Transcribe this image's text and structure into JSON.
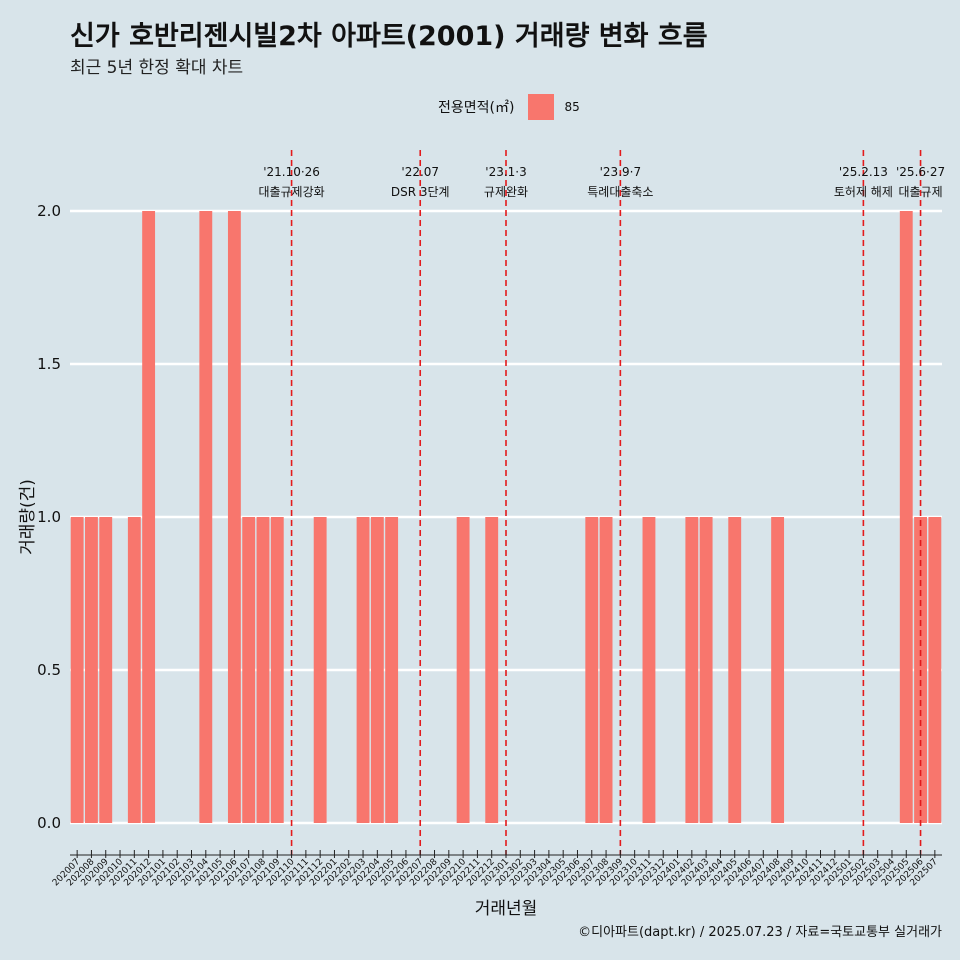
{
  "header": {
    "title": "신가 호반리젠시빌2차 아파트(2001) 거래량 변화 흐름",
    "subtitle": "최근 5년 한정 확대 차트"
  },
  "legend": {
    "title": "전용면적(㎡)",
    "label": "85",
    "color": "#f8766d"
  },
  "caption": "©디아파트(dapt.kr) / 2025.07.23 / 자료=국토교통부 실거래가",
  "chart_data": {
    "type": "bar",
    "xlabel": "거래년월",
    "ylabel": "거래량(건)",
    "ylim": [
      0,
      2
    ],
    "yticks": [
      "0.0",
      "0.5",
      "1.0",
      "1.5",
      "2.0"
    ],
    "categories": [
      "202007",
      "202008",
      "202009",
      "202010",
      "202011",
      "202012",
      "202101",
      "202102",
      "202103",
      "202104",
      "202105",
      "202106",
      "202107",
      "202108",
      "202109",
      "202110",
      "202111",
      "202112",
      "202201",
      "202202",
      "202203",
      "202204",
      "202205",
      "202206",
      "202207",
      "202208",
      "202209",
      "202210",
      "202211",
      "202212",
      "202301",
      "202302",
      "202303",
      "202304",
      "202305",
      "202306",
      "202307",
      "202308",
      "202309",
      "202310",
      "202311",
      "202312",
      "202401",
      "202402",
      "202403",
      "202404",
      "202405",
      "202406",
      "202407",
      "202408",
      "202409",
      "202410",
      "202411",
      "202412",
      "202501",
      "202502",
      "202503",
      "202504",
      "202505",
      "202506",
      "202507"
    ],
    "series": [
      {
        "name": "85",
        "values": [
          1,
          1,
          1,
          0,
          1,
          2,
          0,
          0,
          0,
          2,
          0,
          2,
          1,
          1,
          1,
          0,
          0,
          1,
          0,
          0,
          1,
          1,
          1,
          0,
          0,
          0,
          0,
          1,
          0,
          1,
          0,
          0,
          0,
          0,
          0,
          0,
          1,
          1,
          0,
          0,
          1,
          0,
          0,
          1,
          1,
          0,
          1,
          0,
          0,
          1,
          0,
          0,
          0,
          0,
          0,
          0,
          0,
          0,
          2,
          1,
          1
        ]
      }
    ],
    "annotations": [
      {
        "x": "202110",
        "date": "'21.10·26",
        "text": "대출규제강화"
      },
      {
        "x": "202207",
        "date": "'22.07",
        "text": "DSR 3단계"
      },
      {
        "x": "202301",
        "date": "'23.1·3",
        "text": "규제완화"
      },
      {
        "x": "202309",
        "date": "'23.9·7",
        "text": "특례대출축소"
      },
      {
        "x": "202502",
        "date": "'25.2.13",
        "text": "토허제 해제"
      },
      {
        "x": "202506",
        "date": "'25.6·27",
        "text": "대출규제"
      }
    ],
    "bar_color": "#f8766d",
    "vline_color": "#e31a1c",
    "grid": true,
    "legend_position": "top"
  }
}
